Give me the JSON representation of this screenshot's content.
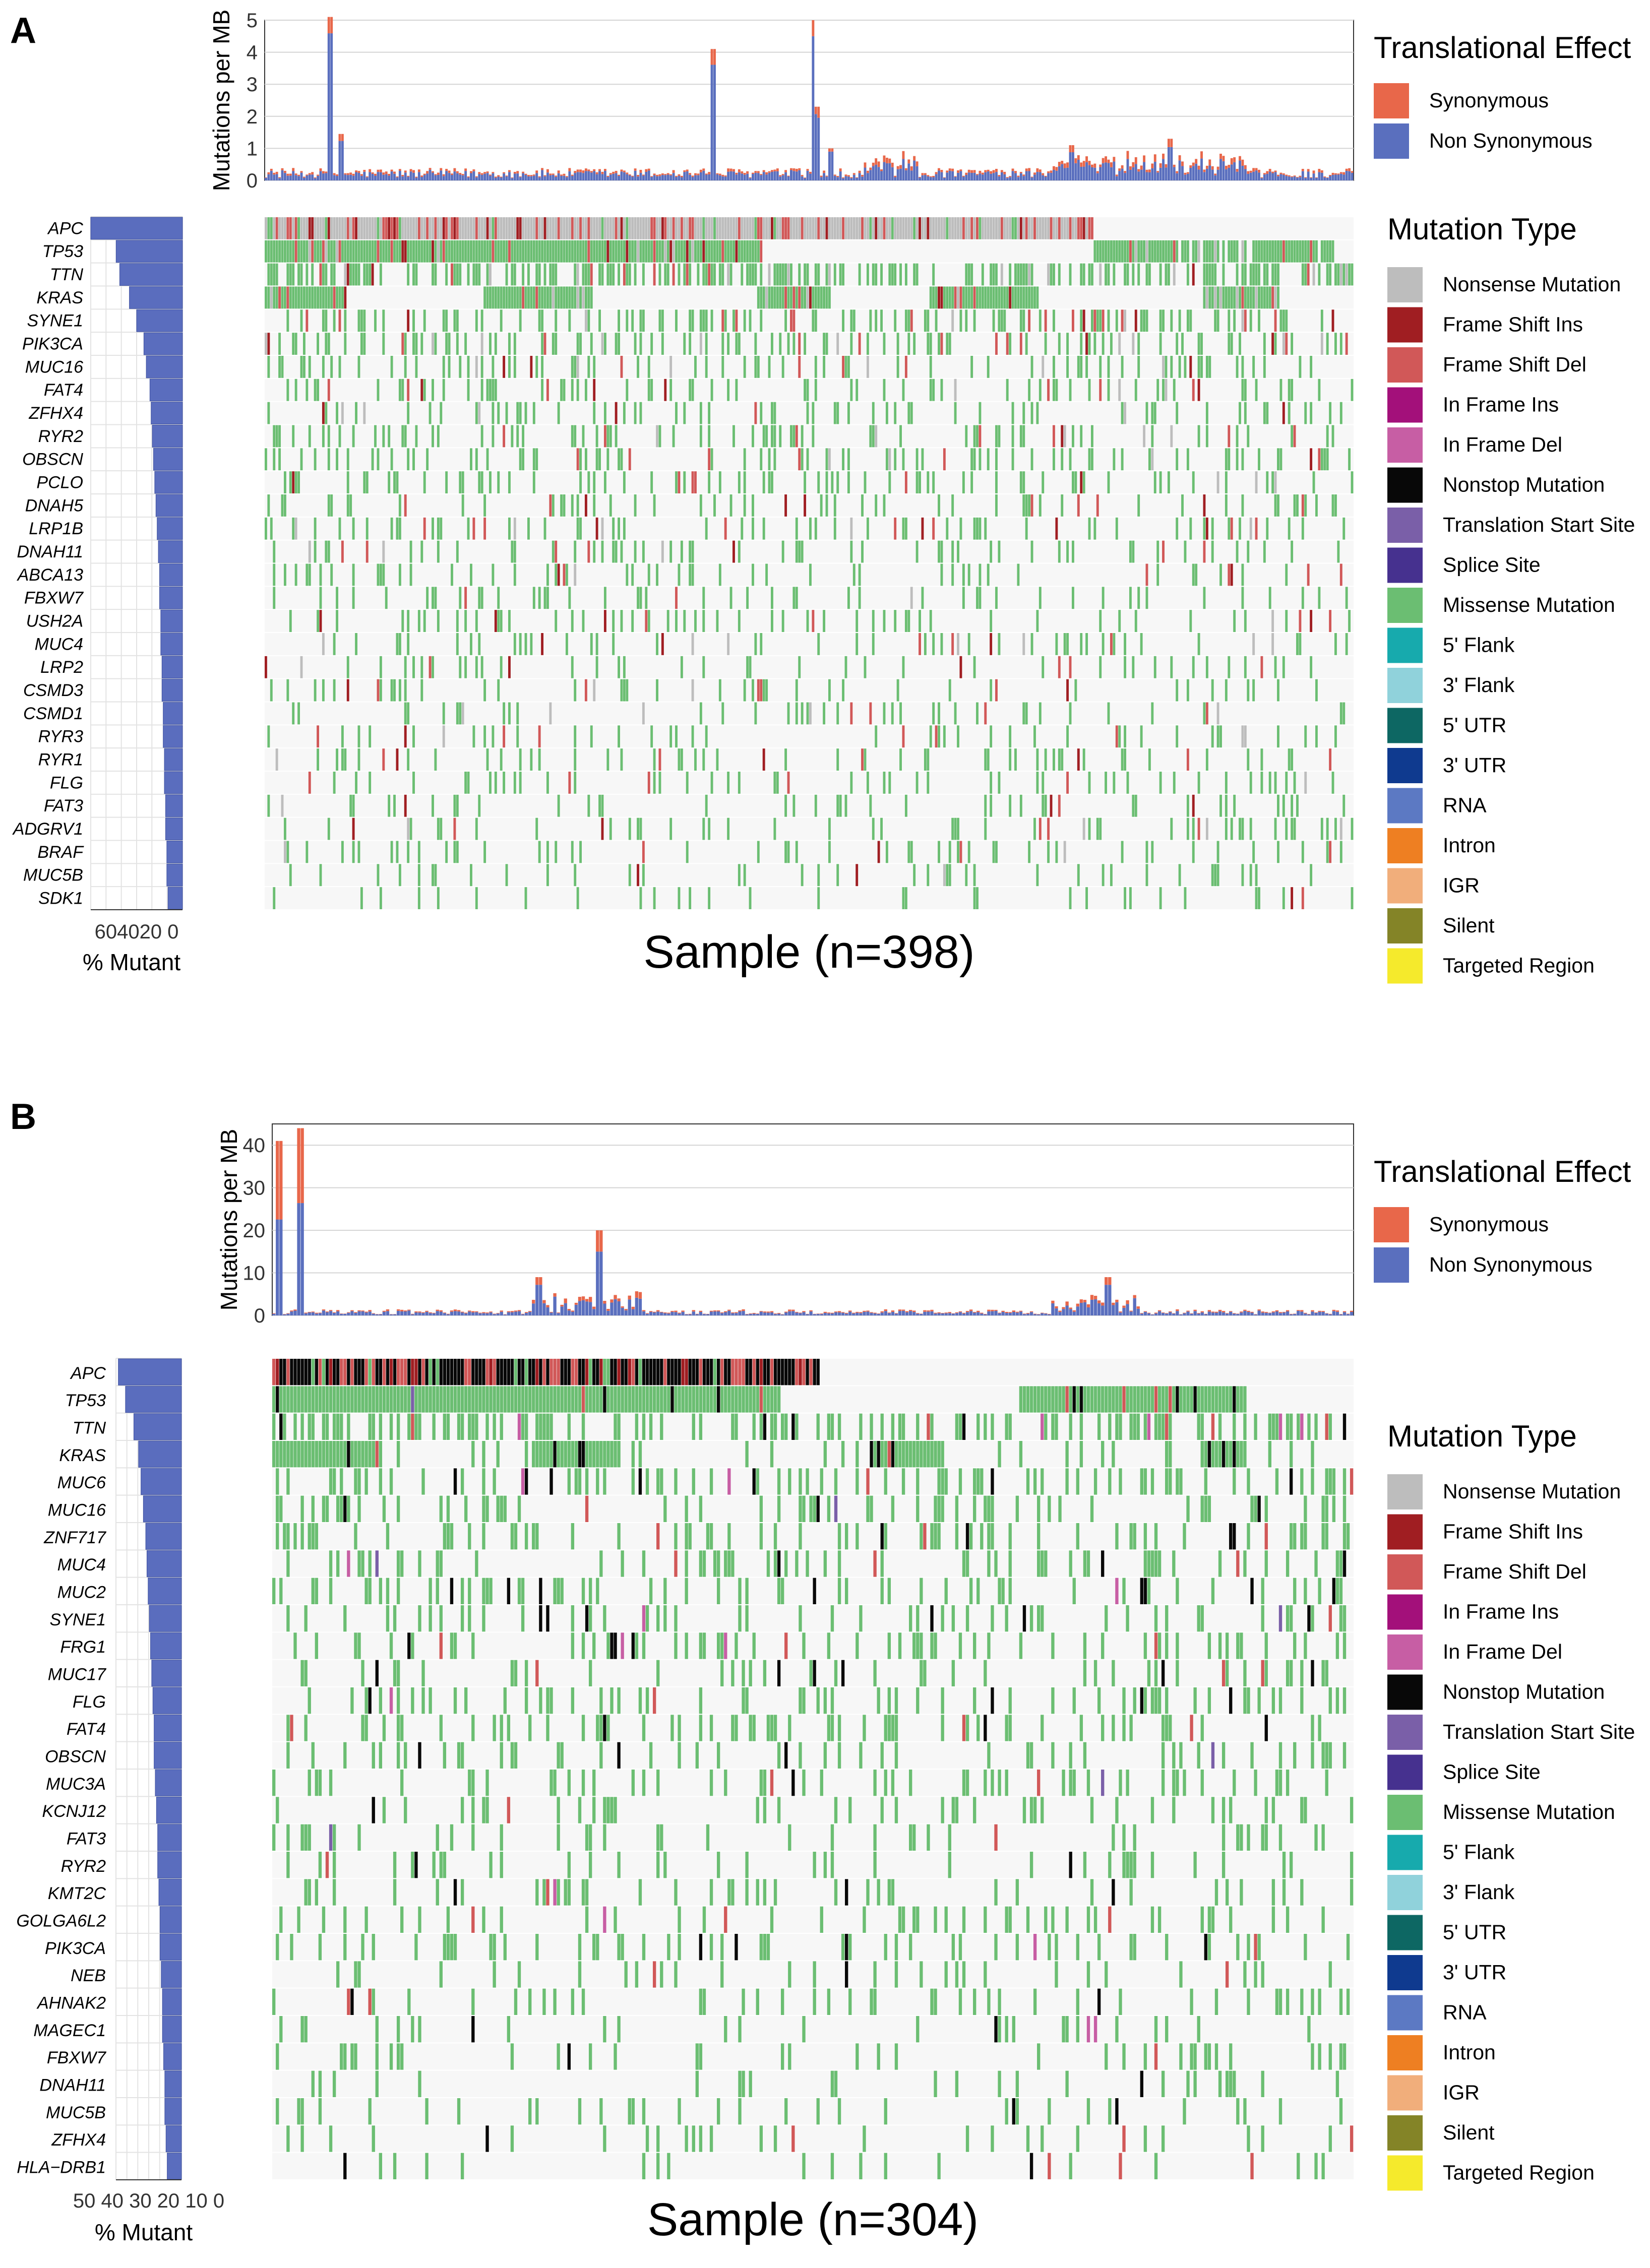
{
  "colors": {
    "synonymous": "#E8674A",
    "non_synonymous": "#5A6FBE",
    "bar_gene": "#5A6DBE",
    "grid": "#D4D4D4",
    "heat_bg": "#F7F7F7",
    "mutation_types": [
      "#BDBDBD",
      "#A01E22",
      "#D15858",
      "#A3107A",
      "#C75EA4",
      "#080808",
      "#7A5FA8",
      "#46318F",
      "#6BBE72",
      "#17AAAD",
      "#90D2DB",
      "#0D6763",
      "#0F3A8F",
      "#5C79C3",
      "#EE7F22",
      "#F1AE7B",
      "#848427",
      "#F5EA2C"
    ]
  },
  "chart_data": [
    {
      "panel": "A",
      "type": "heatmap",
      "xlabel": "Sample (n=398)",
      "tmb": {
        "type": "bar",
        "ylabel": "Mutations per MB",
        "ylim": [
          0,
          5
        ],
        "yticks": [
          0,
          1,
          2,
          3,
          4,
          5
        ],
        "spikes": [
          [
            0.06,
            5.1,
            0.1
          ],
          [
            0.07,
            1.45,
            0.15
          ],
          [
            0.41,
            4.1,
            0.12
          ],
          [
            0.505,
            5.0,
            0.1
          ],
          [
            0.507,
            2.3,
            0.15
          ],
          [
            0.52,
            1.0,
            0.1
          ],
          [
            0.74,
            1.1,
            0.2
          ],
          [
            0.83,
            1.3,
            0.2
          ]
        ],
        "legend_title": "Translational Effect",
        "legend": [
          "Synonymous",
          "Non Synonymous"
        ]
      },
      "genes": [
        "APC",
        "TP53",
        "TTN",
        "KRAS",
        "SYNE1",
        "PIK3CA",
        "MUC16",
        "FAT4",
        "ZFHX4",
        "RYR2",
        "OBSCN",
        "PCLO",
        "DNAH5",
        "LRP1B",
        "DNAH11",
        "ABCA13",
        "FBXW7",
        "USH2A",
        "MUC4",
        "LRP2",
        "CSMD3",
        "CSMD1",
        "RYR3",
        "RYR1",
        "FLG",
        "FAT3",
        "ADGRV1",
        "BRAF",
        "MUC5B",
        "SDK1"
      ],
      "percent_mutant": [
        76,
        55,
        52,
        44,
        38,
        32,
        30,
        27,
        26,
        25,
        24,
        23,
        22,
        21,
        20,
        19,
        19,
        18,
        18,
        17,
        17,
        16,
        16,
        15,
        15,
        14,
        14,
        13,
        13,
        12
      ],
      "bar_xlim": [
        0,
        76
      ],
      "bar_xticks_text": "604020 0",
      "bar_xlabel": "% Mutant",
      "samples": 398,
      "legend_title": "Mutation Type",
      "legend": [
        "Nonsense Mutation",
        "Frame Shift Ins",
        "Frame Shift Del",
        "In Frame Ins",
        "In Frame Del",
        "Nonstop Mutation",
        "Translation Start Site",
        "Splice Site",
        "Missense Mutation",
        "5' Flank",
        "3' Flank",
        "5' UTR",
        "3' UTR",
        "RNA",
        "Intron",
        "IGR",
        "Silent",
        "Targeted Region"
      ],
      "top_gene_type": "Nonsense Mutation"
    },
    {
      "panel": "B",
      "type": "heatmap",
      "xlabel": "Sample (n=304)",
      "tmb": {
        "type": "bar",
        "ylabel": "Mutations per MB",
        "ylim": [
          0,
          45
        ],
        "yticks": [
          0,
          10,
          20,
          30,
          40
        ],
        "spikes": [
          [
            0.005,
            41,
            0.45
          ],
          [
            0.025,
            44,
            0.4
          ],
          [
            0.245,
            9,
            0.2
          ],
          [
            0.3,
            20,
            0.25
          ],
          [
            0.77,
            9,
            0.2
          ]
        ],
        "legend_title": "Translational Effect",
        "legend": [
          "Synonymous",
          "Non Synonymous"
        ]
      },
      "genes": [
        "APC",
        "TP53",
        "TTN",
        "KRAS",
        "MUC6",
        "MUC16",
        "ZNF717",
        "MUC4",
        "MUC2",
        "SYNE1",
        "FRG1",
        "MUC17",
        "FLG",
        "FAT4",
        "OBSCN",
        "MUC3A",
        "KCNJ12",
        "FAT3",
        "RYR2",
        "KMT2C",
        "GOLGA6L2",
        "PIK3CA",
        "NEB",
        "AHNAK2",
        "MAGEC1",
        "FBXW7",
        "DNAH11",
        "MUC5B",
        "ZFHX4",
        "HLA−DRB1"
      ],
      "percent_mutant": [
        53,
        47,
        40,
        36,
        34,
        32,
        30,
        29,
        28,
        27,
        26,
        25,
        24,
        23,
        23,
        22,
        21,
        20,
        20,
        19,
        18,
        18,
        17,
        16,
        16,
        15,
        14,
        14,
        13,
        12
      ],
      "bar_xlim": [
        0,
        55
      ],
      "bar_xticks_text": "50 40 30 20 10 0",
      "bar_xlabel": "% Mutant",
      "samples": 304,
      "legend_title": "Mutation Type",
      "legend": [
        "Nonsense Mutation",
        "Frame Shift Ins",
        "Frame Shift Del",
        "In Frame Ins",
        "In Frame Del",
        "Nonstop Mutation",
        "Translation Start Site",
        "Splice Site",
        "Missense Mutation",
        "5' Flank",
        "3' Flank",
        "5' UTR",
        "3' UTR",
        "RNA",
        "Intron",
        "IGR",
        "Silent",
        "Targeted Region"
      ],
      "top_gene_type": "Nonstop Mutation"
    }
  ]
}
